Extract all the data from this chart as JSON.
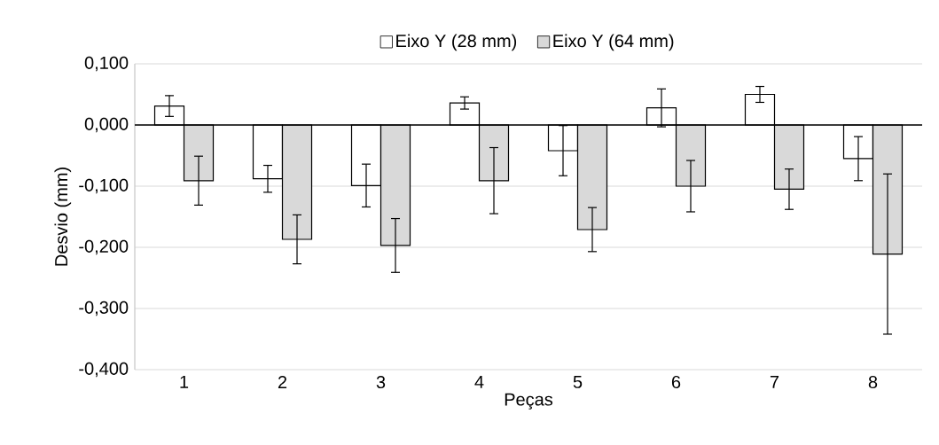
{
  "chart_data": {
    "type": "bar",
    "xlabel": "Peças",
    "ylabel": "Desvio (mm)",
    "categories": [
      "1",
      "2",
      "3",
      "4",
      "5",
      "6",
      "7",
      "8"
    ],
    "series": [
      {
        "name": "Eixo Y (28 mm)",
        "color": "#ffffff",
        "values": [
          0.031,
          -0.088,
          -0.099,
          0.036,
          -0.042,
          0.028,
          0.05,
          -0.055
        ],
        "errors": [
          0.017,
          0.022,
          0.035,
          0.01,
          0.041,
          0.031,
          0.013,
          0.036
        ]
      },
      {
        "name": "Eixo Y (64 mm)",
        "color": "#d9d9d9",
        "values": [
          -0.091,
          -0.187,
          -0.197,
          -0.091,
          -0.171,
          -0.1,
          -0.105,
          -0.211
        ],
        "errors": [
          0.04,
          0.04,
          0.044,
          0.054,
          0.036,
          0.042,
          0.033,
          0.131
        ]
      }
    ],
    "ylim": [
      -0.4,
      0.1
    ],
    "yticks": [
      {
        "value": -0.4,
        "label": "-0,400"
      },
      {
        "value": -0.3,
        "label": "-0,300"
      },
      {
        "value": -0.2,
        "label": "-0,200"
      },
      {
        "value": -0.1,
        "label": "-0,100"
      },
      {
        "value": 0,
        "label": "0,000"
      },
      {
        "value": 0.1,
        "label": "0,100"
      }
    ],
    "grid": "y",
    "legend": "top"
  }
}
